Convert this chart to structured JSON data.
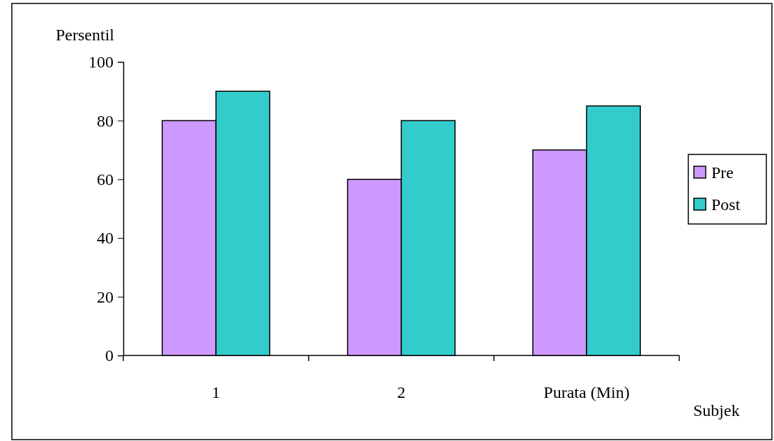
{
  "chart_data": {
    "type": "bar",
    "ylabel": "Persentil",
    "xlabel": "Subjek",
    "categories": [
      "1",
      "2",
      "Purata (Min)"
    ],
    "series": [
      {
        "name": "Pre",
        "color": "#cc99ff",
        "values": [
          80,
          60,
          70
        ]
      },
      {
        "name": "Post",
        "color": "#33cccc",
        "values": [
          90,
          80,
          85
        ]
      }
    ],
    "ylim": [
      0,
      100
    ],
    "yticks": [
      0,
      20,
      40,
      60,
      80,
      100
    ],
    "legend": "right"
  }
}
